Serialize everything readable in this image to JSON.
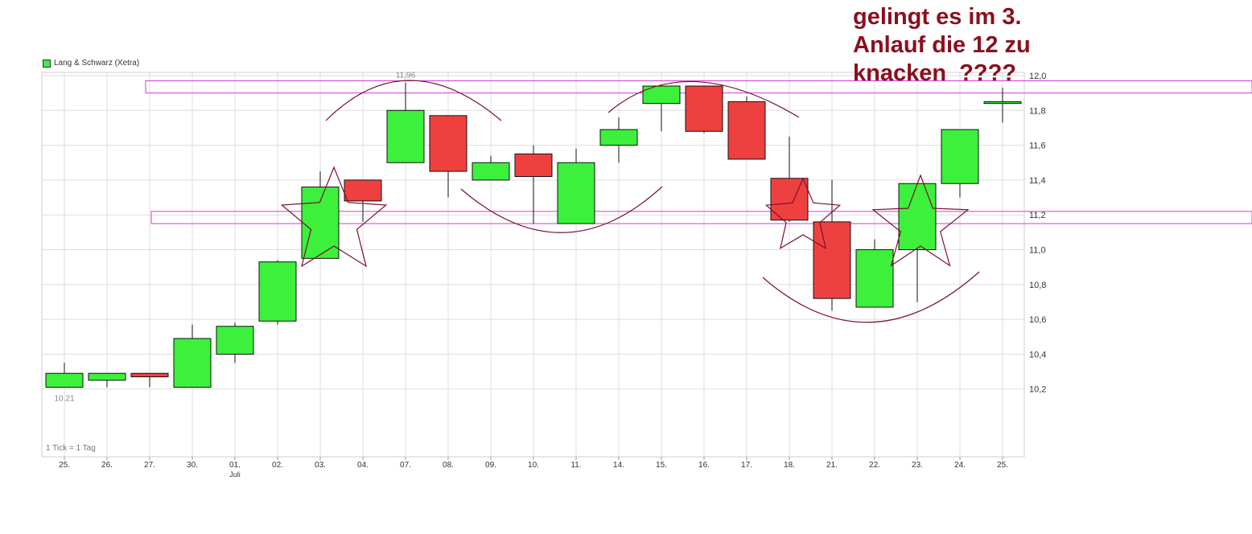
{
  "annotation": {
    "text": "gelingt es im 3.\nAnlauf die 12 zu\nknacken  ????"
  },
  "legend": {
    "label": "Lang & Schwarz (Xetra)",
    "color": "#3cf03c"
  },
  "tick_note": "1 Tick = 1 Tag",
  "colors": {
    "up": "#3cf03c",
    "down": "#ef4040",
    "grid": "#dddddd",
    "drawing": "#7a1030",
    "zone": "#d23cd2"
  },
  "chart_data": {
    "type": "candlestick",
    "ylim": [
      10.0,
      12.0
    ],
    "y_ticks": [
      "10,2",
      "10,4",
      "10,6",
      "10,8",
      "11,0",
      "11,2",
      "11,4",
      "11,6",
      "11,8",
      "12,0"
    ],
    "categories": [
      "25.",
      "26.",
      "27.",
      "30.",
      "01.",
      "02.",
      "03.",
      "04.",
      "07.",
      "08.",
      "09.",
      "10.",
      "11.",
      "14.",
      "15.",
      "16.",
      "17.",
      "18.",
      "21.",
      "22.",
      "23.",
      "24.",
      "25."
    ],
    "month_label": {
      "index": 4,
      "text": "Juli"
    },
    "candles": [
      {
        "open": 10.21,
        "high": 10.35,
        "low": 10.21,
        "close": 10.29
      },
      {
        "open": 10.25,
        "high": 10.29,
        "low": 10.21,
        "close": 10.29
      },
      {
        "open": 10.29,
        "high": 10.29,
        "low": 10.21,
        "close": 10.27
      },
      {
        "open": 10.21,
        "high": 10.57,
        "low": 10.21,
        "close": 10.49
      },
      {
        "open": 10.4,
        "high": 10.58,
        "low": 10.35,
        "close": 10.56
      },
      {
        "open": 10.59,
        "high": 10.94,
        "low": 10.57,
        "close": 10.93
      },
      {
        "open": 10.95,
        "high": 11.45,
        "low": 10.95,
        "close": 11.36
      },
      {
        "open": 11.4,
        "high": 11.4,
        "low": 11.16,
        "close": 11.28
      },
      {
        "open": 11.5,
        "high": 11.96,
        "low": 11.5,
        "close": 11.8
      },
      {
        "open": 11.77,
        "high": 11.77,
        "low": 11.3,
        "close": 11.45
      },
      {
        "open": 11.4,
        "high": 11.54,
        "low": 11.4,
        "close": 11.5
      },
      {
        "open": 11.55,
        "high": 11.6,
        "low": 11.15,
        "close": 11.42
      },
      {
        "open": 11.15,
        "high": 11.58,
        "low": 11.15,
        "close": 11.5
      },
      {
        "open": 11.6,
        "high": 11.76,
        "low": 11.5,
        "close": 11.69
      },
      {
        "open": 11.84,
        "high": 11.94,
        "low": 11.68,
        "close": 11.94
      },
      {
        "open": 11.94,
        "high": 11.94,
        "low": 11.67,
        "close": 11.68
      },
      {
        "open": 11.85,
        "high": 11.88,
        "low": 11.52,
        "close": 11.52
      },
      {
        "open": 11.41,
        "high": 11.65,
        "low": 11.16,
        "close": 11.17
      },
      {
        "open": 11.16,
        "high": 11.4,
        "low": 10.65,
        "close": 10.72
      },
      {
        "open": 10.67,
        "high": 11.06,
        "low": 10.67,
        "close": 11.0
      },
      {
        "open": 11.0,
        "high": 11.38,
        "low": 10.7,
        "close": 11.38
      },
      {
        "open": 11.38,
        "high": 11.69,
        "low": 11.3,
        "close": 11.69
      },
      {
        "open": 11.84,
        "high": 11.93,
        "low": 11.73,
        "close": 11.85
      }
    ],
    "annotations": [
      {
        "text": "11,96",
        "index": 8,
        "value": 11.96,
        "pos": "above"
      },
      {
        "text": "10,21",
        "index": 0,
        "value": 10.21,
        "pos": "below"
      }
    ],
    "zones": [
      {
        "low": 11.9,
        "high": 11.97
      },
      {
        "low": 11.15,
        "high": 11.22
      }
    ],
    "grid": true,
    "legend": "top-left"
  }
}
